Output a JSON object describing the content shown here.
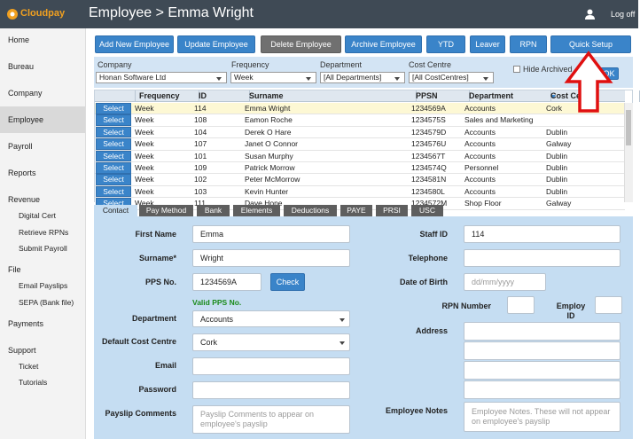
{
  "header": {
    "logo": "Cloudpay",
    "title": "Employee > Emma Wright",
    "user_action": "Log off"
  },
  "sidebar": [
    {
      "label": "Home"
    },
    {
      "label": "Bureau"
    },
    {
      "label": "Company"
    },
    {
      "label": "Employee"
    },
    {
      "label": "Payroll"
    },
    {
      "label": "Reports"
    },
    {
      "label": "Revenue",
      "items": [
        "Digital Cert",
        "Retrieve RPNs",
        "Submit Payroll"
      ]
    },
    {
      "label": "File",
      "items": [
        "Email Payslips",
        "SEPA (Bank file)"
      ]
    },
    {
      "label": "Payments"
    },
    {
      "label": "Support",
      "items": [
        "Ticket",
        "Tutorials"
      ]
    }
  ],
  "toolbar": [
    "Add New Employee",
    "Update Employee",
    "Delete Employee",
    "Archive Employee",
    "YTD",
    "Leaver",
    "RPN",
    "Quick Setup"
  ],
  "filters": {
    "company": {
      "label": "Company",
      "value": "Honan Software Ltd"
    },
    "frequency": {
      "label": "Frequency",
      "value": "Week"
    },
    "department": {
      "label": "Department",
      "value": "[All Departments]"
    },
    "cost_centre": {
      "label": "Cost Centre",
      "value": "[All CostCentres]"
    },
    "hide_archived": "Hide Archived",
    "ok": "OK"
  },
  "table": {
    "columns": [
      "Frequency",
      "ID",
      "Surname",
      "PPSN",
      "Department",
      "Cost Centre"
    ],
    "row_action": "Select",
    "rows": [
      [
        "Week",
        "114",
        "Emma Wright",
        "1234569A",
        "Accounts",
        "Cork"
      ],
      [
        "Week",
        "108",
        "Eamon Roche",
        "1234575S",
        "Sales and Marketing",
        null
      ],
      [
        "Week",
        "104",
        "Derek O Hare",
        "1234579D",
        "Accounts",
        "Dublin"
      ],
      [
        "Week",
        "107",
        "Janet O Connor",
        "1234576U",
        "Accounts",
        "Galway"
      ],
      [
        "Week",
        "101",
        "Susan Murphy",
        "1234567T",
        "Accounts",
        "Dublin"
      ],
      [
        "Week",
        "109",
        "Patrick Morrow",
        "1234574Q",
        "Personnel",
        "Dublin"
      ],
      [
        "Week",
        "102",
        "Peter McMorrow",
        "1234581N",
        "Accounts",
        "Dublin"
      ],
      [
        "Week",
        "103",
        "Kevin Hunter",
        "1234580L",
        "Accounts",
        "Dublin"
      ],
      [
        "Week",
        "111",
        "Dave Hone",
        "1234572M",
        "Shop Floor",
        "Galway"
      ]
    ]
  },
  "tabs": [
    "Contact",
    "Pay Method",
    "Bank",
    "Elements",
    "Deductions",
    "PAYE",
    "PRSI",
    "USC"
  ],
  "form": {
    "first_name": {
      "label": "First Name",
      "value": "Emma"
    },
    "surname": {
      "label": "Surname*",
      "value": "Wright"
    },
    "pps_no": {
      "label": "PPS No.",
      "value": "1234569A",
      "button": "Check",
      "status": "Valid PPS No."
    },
    "department": {
      "label": "Department",
      "value": "Accounts"
    },
    "default_cost_centre": {
      "label": "Default Cost Centre",
      "value": "Cork"
    },
    "email": {
      "label": "Email"
    },
    "password": {
      "label": "Password"
    },
    "payslip_comments": {
      "label": "Payslip Comments",
      "placeholder": "Payslip Comments to appear on employee's payslip"
    },
    "staff_id": {
      "label": "Staff ID",
      "value": "114"
    },
    "telephone": {
      "label": "Telephone"
    },
    "date_of_birth": {
      "label": "Date of Birth",
      "placeholder": "dd/mm/yyyy"
    },
    "rpn_number": {
      "label": "RPN Number"
    },
    "employ_id": {
      "label": "Employ ID"
    },
    "address": {
      "label": "Address"
    },
    "employee_notes": {
      "label": "Employee Notes",
      "placeholder": "Employee Notes. These will not appear on employee's payslip"
    }
  }
}
